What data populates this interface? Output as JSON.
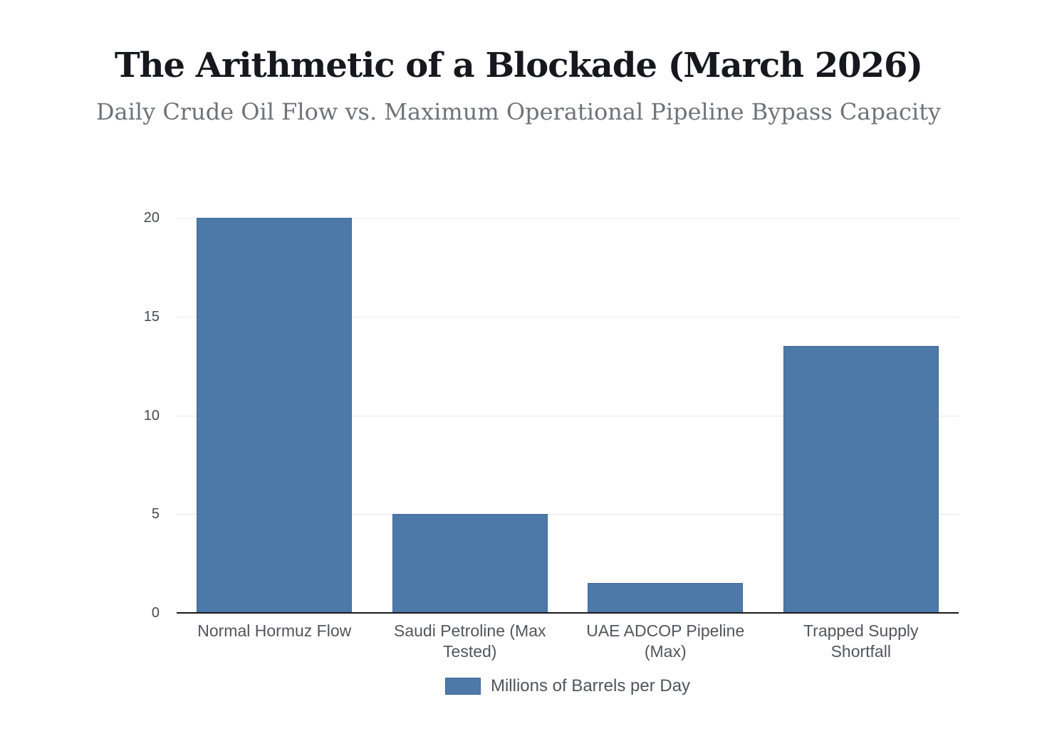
{
  "header": {
    "title": "The Arithmetic of a Blockade (March 2026)",
    "subtitle": "Daily Crude Oil Flow vs. Maximum Operational Pipeline Bypass Capacity"
  },
  "chart_data": {
    "type": "bar",
    "title": "The Arithmetic of a Blockade (March 2026)",
    "subtitle": "Daily Crude Oil Flow vs. Maximum Operational Pipeline Bypass Capacity",
    "categories": [
      "Normal Hormuz Flow",
      "Saudi Petroline (Max Tested)",
      "UAE ADCOP Pipeline (Max)",
      "Trapped Supply Shortfall"
    ],
    "values": [
      20,
      5,
      1.5,
      13.5
    ],
    "series_name": "Millions of Barrels per Day",
    "xlabel": "",
    "ylabel": "",
    "ylim": [
      0,
      20
    ],
    "yticks": [
      0,
      5,
      10,
      15,
      20
    ],
    "grid": true,
    "legend_position": "bottom"
  },
  "theme": {
    "bg": "#ffffff",
    "bar": "#4d79a8",
    "bar_border": "#41679b",
    "grid": "#e4e8ee",
    "axis": "#1a1a1a",
    "title": "#17181d",
    "subtitle": "#6e7378",
    "tick": "#47494d",
    "xlabel": "#51565c",
    "legend": "#4e555c"
  }
}
